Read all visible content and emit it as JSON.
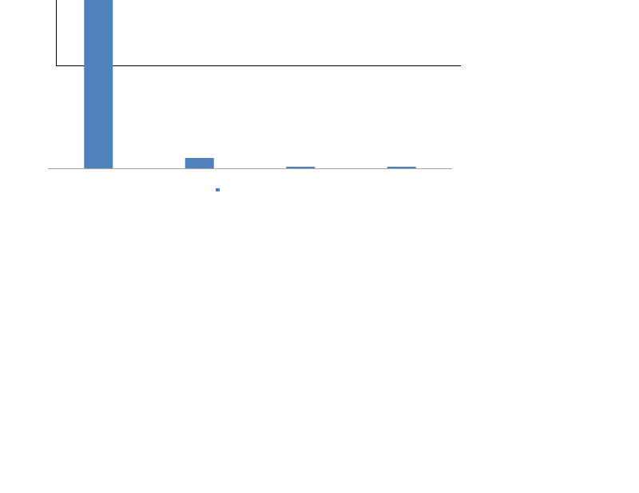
{
  "chart_data": {
    "type": "bar",
    "values": [
      211,
      13,
      2,
      2
    ],
    "color": "#4f81bd",
    "ylim": [
      0,
      211
    ]
  }
}
